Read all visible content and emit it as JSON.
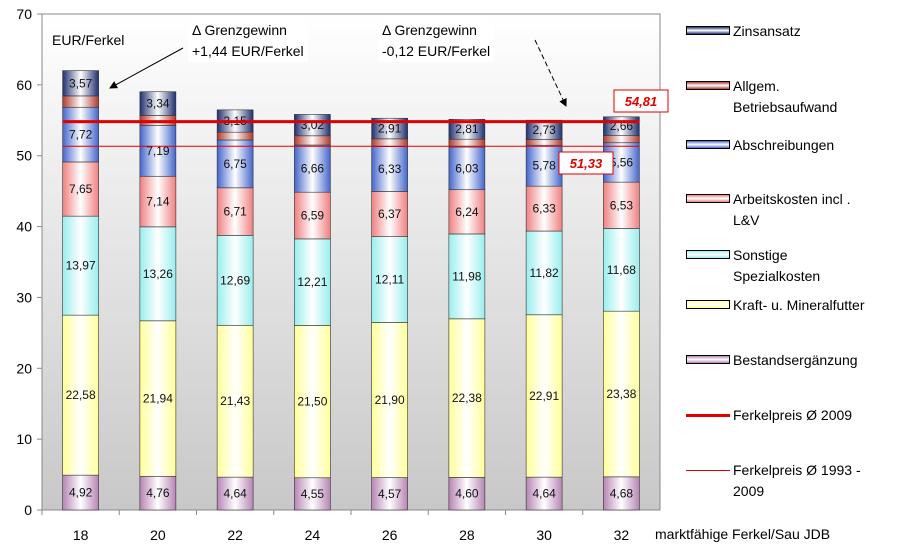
{
  "chart_data": {
    "type": "stacked_bar",
    "y_label": "EUR/Ferkel",
    "x_label": "marktfähige Ferkel/Sau JDB",
    "categories": [
      "18",
      "20",
      "22",
      "24",
      "26",
      "28",
      "30",
      "32"
    ],
    "ylim": [
      0,
      70
    ],
    "yticks": [
      0,
      10,
      20,
      30,
      40,
      50,
      60,
      70
    ],
    "series": [
      {
        "name": "Bestandsergänzung",
        "color": "#b784b4",
        "values": [
          4.92,
          4.76,
          4.64,
          4.55,
          4.57,
          4.6,
          4.64,
          4.68
        ],
        "value_labels": [
          "4,92",
          "4,76",
          "4,64",
          "4,55",
          "4,57",
          "4,60",
          "4,64",
          "4,68"
        ]
      },
      {
        "name": "Kraft- u. Mineralfutter",
        "color": "#ffff99",
        "values": [
          22.58,
          21.94,
          21.43,
          21.5,
          21.9,
          22.38,
          22.91,
          23.38
        ],
        "value_labels": [
          "22,58",
          "21,94",
          "21,43",
          "21,50",
          "21,90",
          "22,38",
          "22,91",
          "23,38"
        ]
      },
      {
        "name": "Sonstige\nSpezialkosten",
        "color": "#99eeee",
        "values": [
          13.97,
          13.26,
          12.69,
          12.21,
          12.11,
          11.98,
          11.82,
          11.68
        ],
        "value_labels": [
          "13,97",
          "13,26",
          "12,69",
          "12,21",
          "12,11",
          "11,98",
          "11,82",
          "11,68"
        ]
      },
      {
        "name": "Arbeitskosten incl .\nL&V",
        "color": "#f08080",
        "values": [
          7.65,
          7.14,
          6.71,
          6.59,
          6.37,
          6.24,
          6.33,
          6.53
        ],
        "value_labels": [
          "7,65",
          "7,14",
          "6,71",
          "6,59",
          "6,37",
          "6,24",
          "6,33",
          "6,53"
        ]
      },
      {
        "name": "Abschreibungen",
        "color": "#4466cc",
        "values": [
          7.72,
          7.19,
          6.75,
          6.66,
          6.33,
          6.03,
          5.78,
          5.56
        ],
        "value_labels": [
          "7,72",
          "7,19",
          "6,75",
          "6,66",
          "6,33",
          "6,03",
          "5,78",
          "5,56"
        ]
      },
      {
        "name": "Allgem.\nBetriebsaufwand",
        "color": "#b03a2e",
        "values": [
          1.6,
          1.4,
          1.1,
          1.3,
          1.1,
          1.1,
          0.8,
          1.0
        ]
      },
      {
        "name": "Zinsansatz",
        "color": "#1f2f70",
        "values": [
          3.57,
          3.34,
          3.15,
          3.02,
          2.91,
          2.81,
          2.73,
          2.66
        ],
        "value_labels": [
          "3,57",
          "3,34",
          "3,15",
          "3,02",
          "2,91",
          "2,81",
          "2,73",
          "2,66"
        ]
      }
    ],
    "reference_lines": [
      {
        "name": "Ferkelpreis Ø 2009",
        "color": "#e00000",
        "value": 54.81,
        "value_label": "54,81",
        "width": 3
      },
      {
        "name": "Ferkelpreis Ø 1993 -\n2009",
        "color": "#e00000",
        "value": 51.33,
        "value_label": "51,33",
        "width": 1
      }
    ],
    "annotations": [
      "Δ Grenzgewinn\n+1,44 EUR/Ferkel",
      "Δ Grenzgewinn\n-0,12 EUR/Ferkel"
    ]
  }
}
